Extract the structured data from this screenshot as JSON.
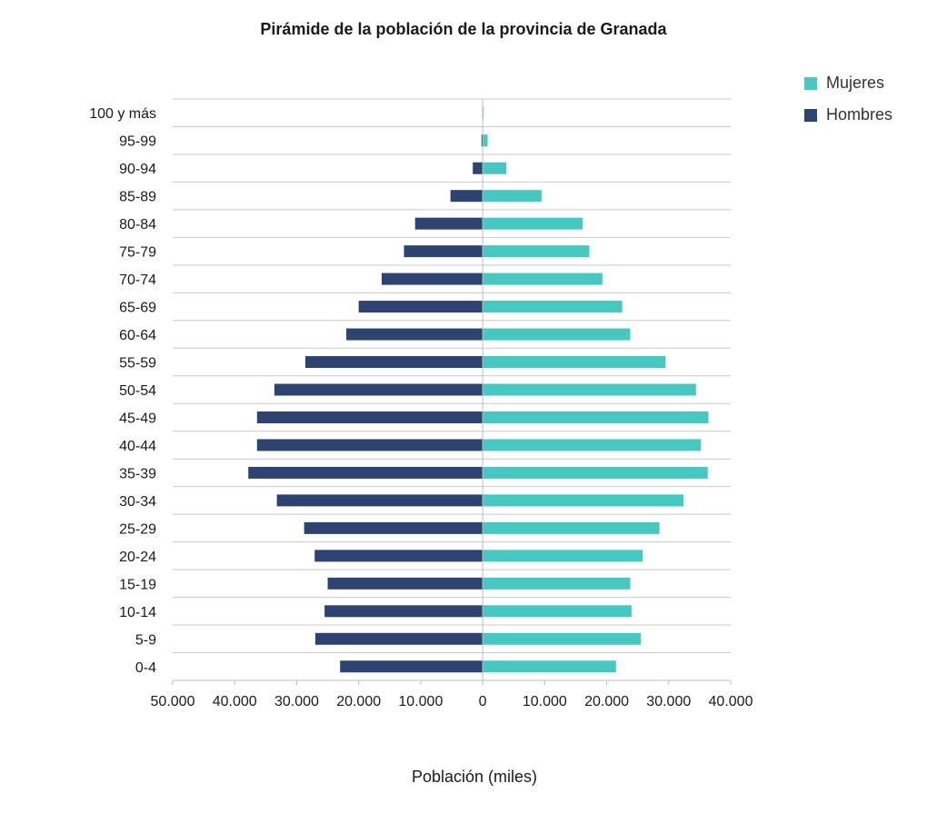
{
  "chart_data": {
    "type": "bar",
    "orientation": "horizontal",
    "title": "Pirámide de la población de la provincia de Granada",
    "xlabel": "Población (miles)",
    "ylabel": "",
    "categories": [
      "0-4",
      "5-9",
      "10-14",
      "15-19",
      "20-24",
      "25-29",
      "30-34",
      "35-39",
      "40-44",
      "45-49",
      "50-54",
      "55-59",
      "60-64",
      "65-69",
      "70-74",
      "75-79",
      "80-84",
      "85-89",
      "90-94",
      "95-99",
      "100 y más"
    ],
    "series": [
      {
        "name": "Mujeres",
        "color": "#45c8c0",
        "values": [
          21500,
          25500,
          24000,
          23800,
          25800,
          28500,
          32400,
          36300,
          35200,
          36400,
          34400,
          29500,
          23800,
          22500,
          19300,
          17200,
          16100,
          9500,
          3800,
          800,
          150
        ]
      },
      {
        "name": "Hombres",
        "color": "#2d4472",
        "values": [
          23000,
          27000,
          25500,
          25000,
          27100,
          28800,
          33200,
          37800,
          36400,
          36400,
          33600,
          28600,
          22000,
          20000,
          16300,
          12700,
          10900,
          5200,
          1600,
          200,
          50
        ]
      }
    ],
    "xlim": [
      -50000,
      40000
    ],
    "xticks": [
      -50000,
      -40000,
      -30000,
      -20000,
      -10000,
      0,
      10000,
      20000,
      30000,
      40000
    ],
    "xtick_labels": [
      "50.000",
      "40.000",
      "30.000",
      "20.000",
      "10.000",
      "0",
      "10.000",
      "20.000",
      "30.000",
      "40.000"
    ],
    "grid": "horizontal",
    "legend_position": "top-right"
  }
}
